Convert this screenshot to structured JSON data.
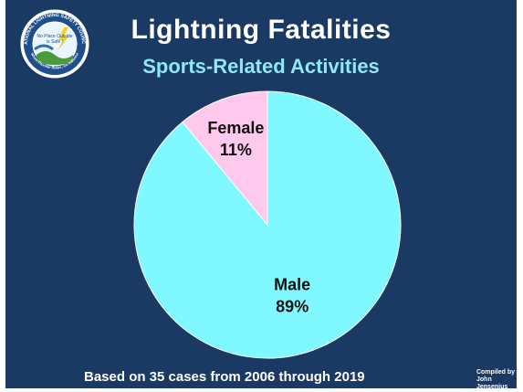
{
  "title": "Lightning Fatalities",
  "subtitle": "Sports-Related Activities",
  "footnote": "Based on 35 cases from 2006 through 2019",
  "credit_line1": "Compiled by",
  "credit_line2": "John Jensenius",
  "logo": {
    "ring_text": "NATIONAL LIGHTNING SAFETY COUNCIL",
    "motto_line1": "No Place Outside",
    "motto_line2": "is Safe !",
    "bottom_text": "When Thunder Roars, Go Indoors!"
  },
  "colors": {
    "background": "#1b3a63",
    "male": "#7ff8ff",
    "female": "#ffc9ee",
    "title": "#ffffff",
    "subtitle": "#8ee8f6"
  },
  "chart_data": {
    "type": "pie",
    "title": "Lightning Fatalities",
    "subtitle": "Sports-Related Activities",
    "slices": [
      {
        "category": "Male",
        "value": 89,
        "label": "89%"
      },
      {
        "category": "Female",
        "value": 11,
        "label": "11%"
      }
    ]
  }
}
